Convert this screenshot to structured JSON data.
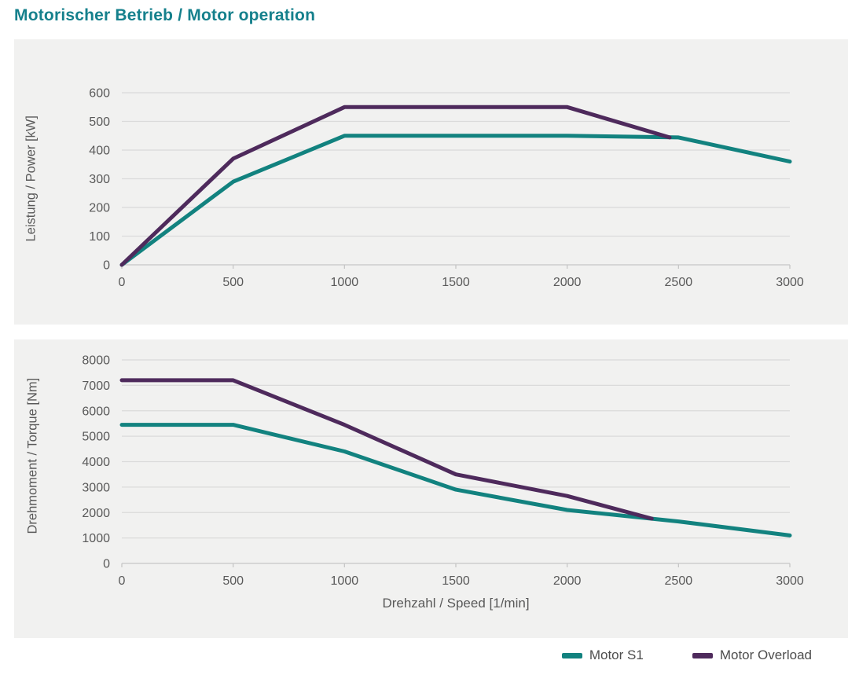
{
  "title": "Motorischer Betrieb / Motor operation",
  "colors": {
    "title_teal": "#15808C",
    "series_s1": "#12827F",
    "series_overload": "#4E2A5C",
    "panel_bg": "#F1F1F0",
    "gridline": "#DADADA",
    "baseline": "#C6C6C6",
    "tick_text": "#595959"
  },
  "legend": {
    "items": [
      {
        "label": "Motor S1",
        "color": "#12827F"
      },
      {
        "label": "Motor Overload",
        "color": "#4E2A5C"
      }
    ]
  },
  "chart_data": [
    {
      "type": "line",
      "title": "Motorischer Betrieb / Motor operation",
      "xlabel": "",
      "ylabel": "Leistung / Power [kW]",
      "xlim": [
        0,
        3000
      ],
      "ylim": [
        0,
        600
      ],
      "xticks": [
        0,
        500,
        1000,
        1500,
        2000,
        2500,
        3000
      ],
      "yticks": [
        0,
        100,
        200,
        300,
        400,
        500,
        600
      ],
      "grid": "horizontal",
      "legend_position": "below-right",
      "series": [
        {
          "name": "Motor S1",
          "color": "#12827F",
          "points": [
            [
              0,
              0
            ],
            [
              500,
              290
            ],
            [
              1000,
              450
            ],
            [
              1500,
              450
            ],
            [
              2000,
              450
            ],
            [
              2500,
              444
            ],
            [
              3000,
              360
            ]
          ]
        },
        {
          "name": "Motor Overload",
          "color": "#4E2A5C",
          "points": [
            [
              0,
              0
            ],
            [
              500,
              370
            ],
            [
              1000,
              550
            ],
            [
              1500,
              550
            ],
            [
              2000,
              550
            ],
            [
              2460,
              444
            ]
          ]
        }
      ]
    },
    {
      "type": "line",
      "title": "",
      "xlabel": "Drehzahl / Speed [1/min]",
      "ylabel": "Drehmoment / Torque [Nm]",
      "xlim": [
        0,
        3000
      ],
      "ylim": [
        0,
        8000
      ],
      "xticks": [
        0,
        500,
        1000,
        1500,
        2000,
        2500,
        3000
      ],
      "yticks": [
        0,
        1000,
        2000,
        3000,
        4000,
        5000,
        6000,
        7000,
        8000
      ],
      "grid": "horizontal",
      "legend_position": "below-right",
      "series": [
        {
          "name": "Motor S1",
          "color": "#12827F",
          "points": [
            [
              0,
              5450
            ],
            [
              500,
              5450
            ],
            [
              1000,
              4400
            ],
            [
              1500,
              2900
            ],
            [
              2000,
              2100
            ],
            [
              2500,
              1650
            ],
            [
              3000,
              1100
            ]
          ]
        },
        {
          "name": "Motor Overload",
          "color": "#4E2A5C",
          "points": [
            [
              0,
              7200
            ],
            [
              500,
              7200
            ],
            [
              1000,
              5450
            ],
            [
              1500,
              3500
            ],
            [
              2000,
              2650
            ],
            [
              2380,
              1760
            ]
          ]
        }
      ]
    }
  ]
}
